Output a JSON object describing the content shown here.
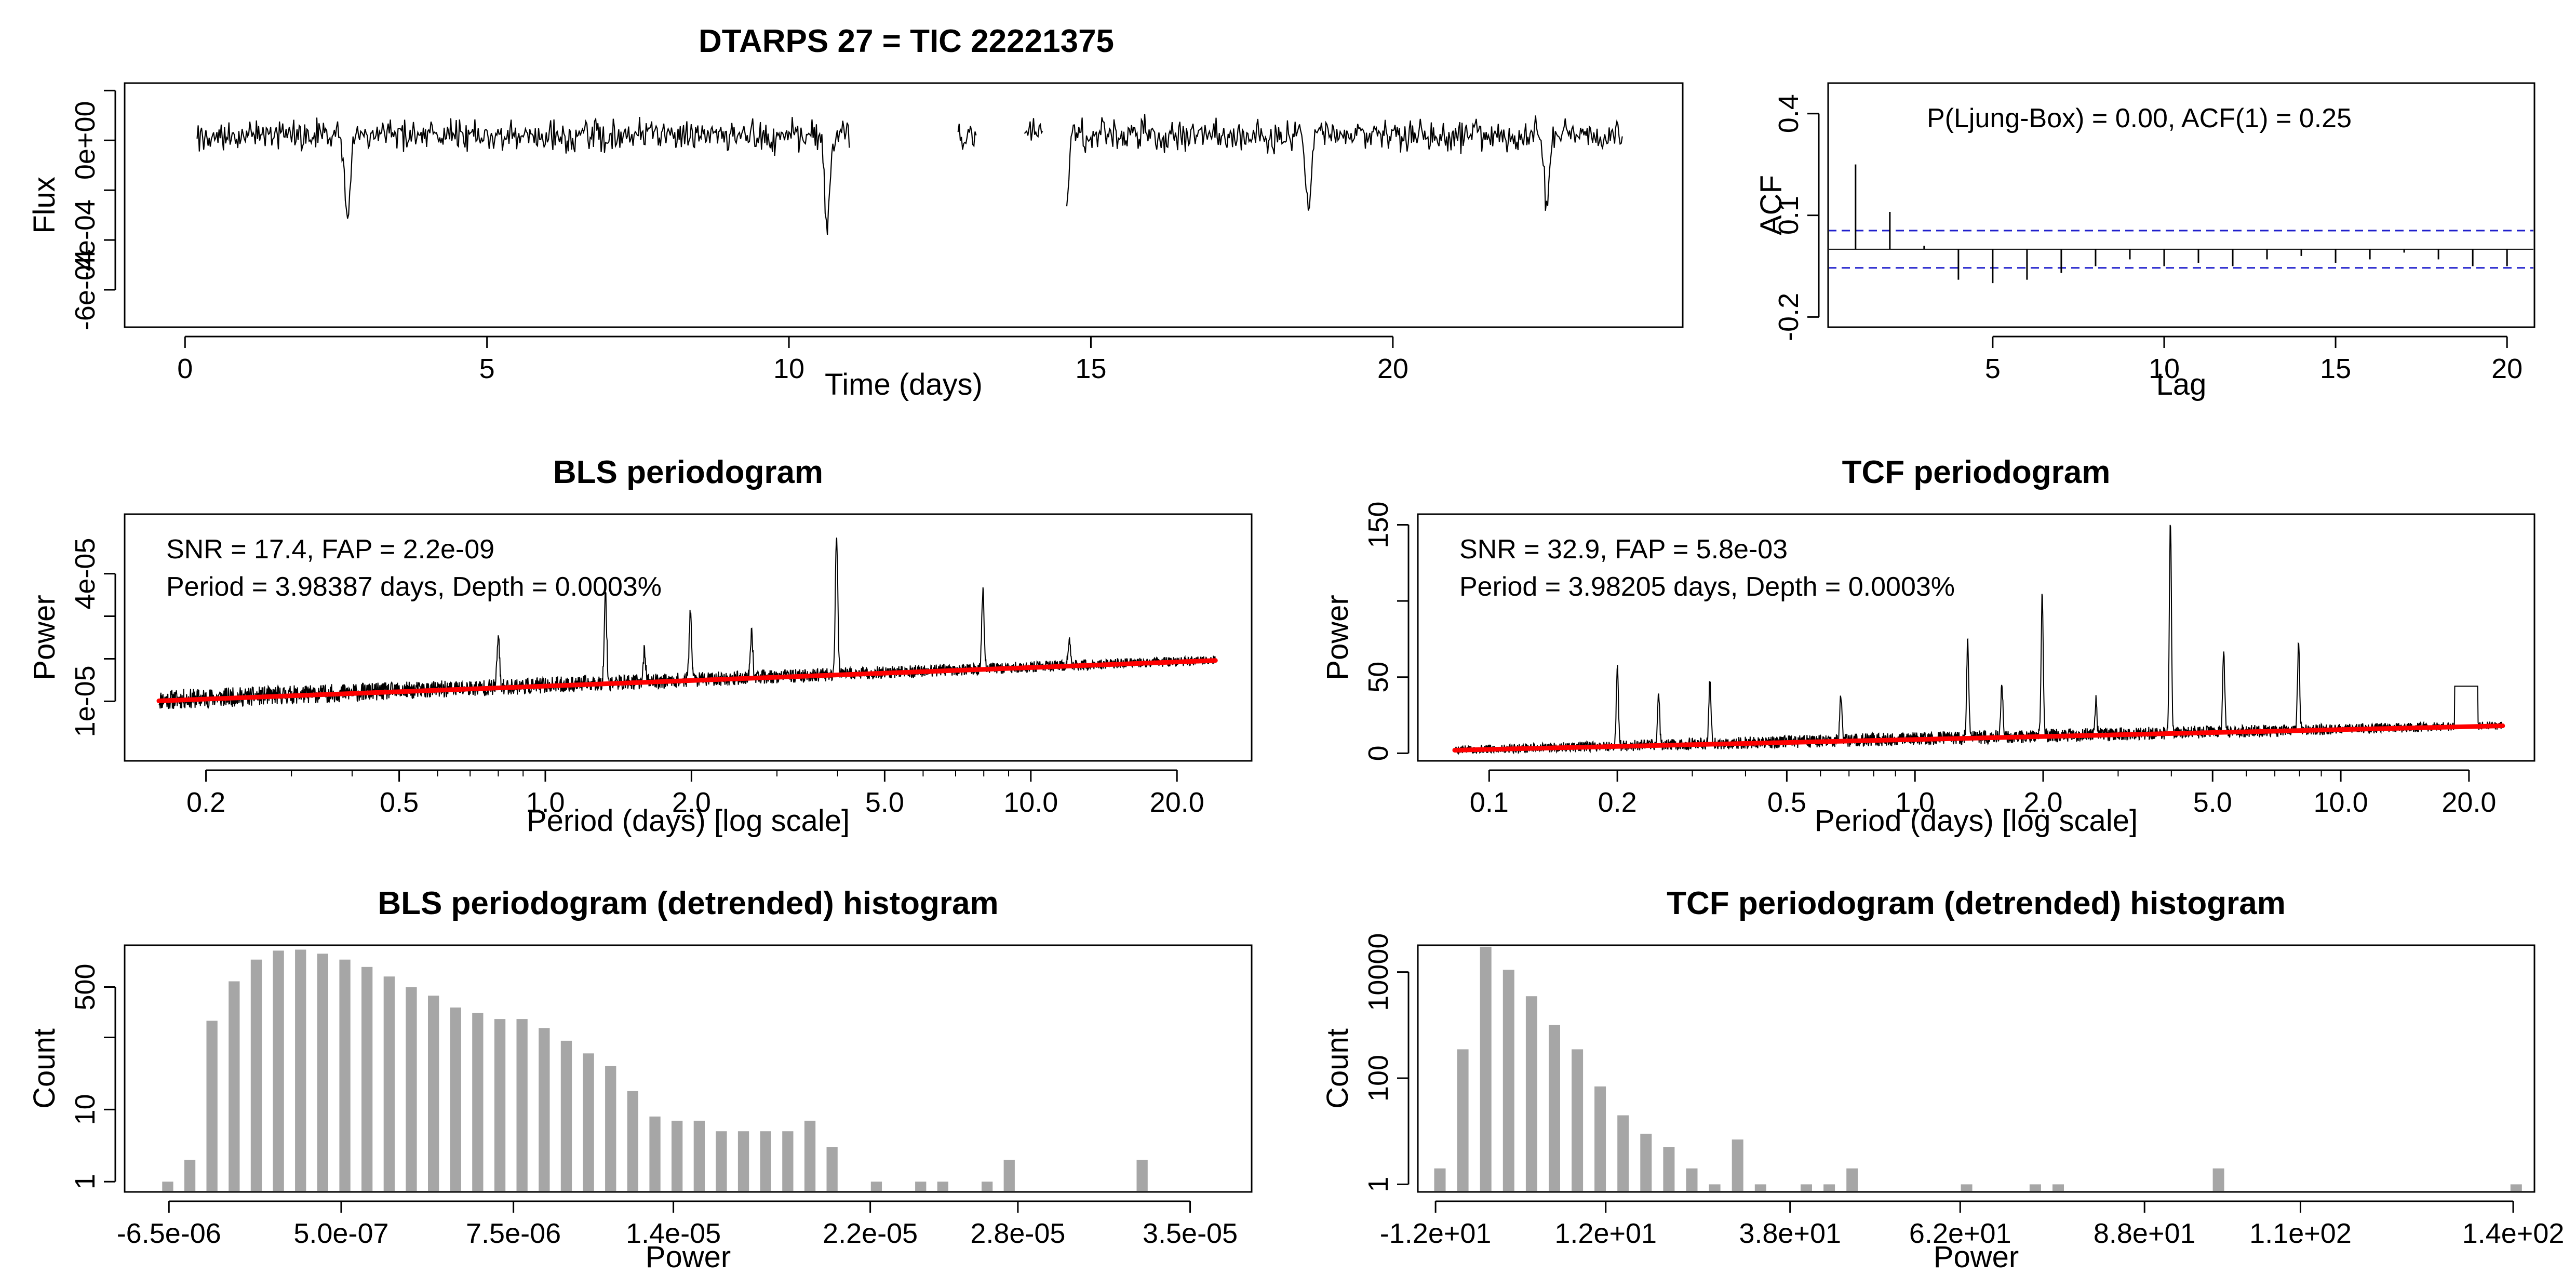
{
  "main_title": "DTARPS 27 = TIC 22221375",
  "chart_data": [
    {
      "id": "lightcurve",
      "type": "line",
      "title": "",
      "xlabel": "Time (days)",
      "ylabel": "Flux",
      "xlim": [
        -1.0,
        24.8
      ],
      "ylim": [
        -0.00075,
        0.00023
      ],
      "x_ticks": [
        0,
        5,
        10,
        15,
        20
      ],
      "x_tick_labels": [
        "0",
        "5",
        "10",
        "15",
        "20"
      ],
      "y_ticks": [
        -0.0006,
        -0.0004,
        0.0,
        0.0002
      ],
      "y_tick_labels": [
        "-6e-04",
        "-4e-04",
        "0e+00",
        ""
      ],
      "y_minor_ticks": [
        -0.0002
      ],
      "segments": [
        [
          0.2,
          11.0
        ],
        [
          12.8,
          13.1
        ],
        [
          13.9,
          14.2
        ],
        [
          14.6,
          23.8
        ]
      ],
      "noise_level": 6e-05,
      "baseline": 2e-05,
      "dips": [
        {
          "time": 2.69,
          "depth": 0.00033
        },
        {
          "time": 10.63,
          "depth": 0.00036
        },
        {
          "time": 14.6,
          "depth": 0.00024
        },
        {
          "time": 18.6,
          "depth": 0.00034
        },
        {
          "time": 22.55,
          "depth": 0.0003
        }
      ],
      "color": "#000000"
    },
    {
      "id": "acf",
      "type": "bar",
      "title": "",
      "annotation": "P(Ljung-Box) = 0.00, ACF(1) = 0.25",
      "xlabel": "Lag",
      "ylabel": "ACF",
      "xlim": [
        0.2,
        20.8
      ],
      "ylim": [
        -0.23,
        0.49
      ],
      "x_ticks": [
        5,
        10,
        15,
        20
      ],
      "x_tick_labels": [
        "5",
        "10",
        "15",
        "20"
      ],
      "y_ticks": [
        -0.2,
        0.1,
        0.4
      ],
      "y_tick_labels": [
        "-0.2",
        "0.1",
        "0.4"
      ],
      "lags": [
        1,
        2,
        3,
        4,
        5,
        6,
        7,
        8,
        9,
        10,
        11,
        12,
        13,
        14,
        15,
        16,
        17,
        18,
        19,
        20
      ],
      "values": [
        0.25,
        0.11,
        0.01,
        -0.09,
        -0.1,
        -0.09,
        -0.07,
        -0.05,
        -0.03,
        -0.05,
        -0.04,
        -0.05,
        -0.03,
        -0.02,
        -0.04,
        -0.03,
        -0.01,
        -0.03,
        -0.05,
        -0.05
      ],
      "confidence": 0.055,
      "ci_color": "#1f1fcc"
    },
    {
      "id": "bls",
      "type": "line",
      "title": "BLS periodogram",
      "annotations": [
        "SNR = 17.4, FAP = 2.2e-09",
        "Period = 3.98387 days, Depth = 0.0003%"
      ],
      "xlabel": "Period (days) [log scale]",
      "ylabel": "Power",
      "x_log": true,
      "xlim": [
        0.136,
        28.5
      ],
      "ylim": [
        -4e-06,
        5.4e-05
      ],
      "x_ticks": [
        0.2,
        0.5,
        1.0,
        2.0,
        5.0,
        10.0,
        20.0
      ],
      "x_tick_labels": [
        "0.2",
        "0.5",
        "1.0",
        "2.0",
        "5.0",
        "10.0",
        "20.0"
      ],
      "y_ticks": [
        1e-05,
        4e-05
      ],
      "y_tick_labels": [
        "1e-05",
        "4e-05"
      ],
      "y_minor_ticks": [
        2e-05,
        3e-05
      ],
      "x_range": [
        0.16,
        24.0
      ],
      "trend": {
        "start": 1.01e-05,
        "end": 1.96e-05
      },
      "noise_level": 4.8e-06,
      "peaks": [
        {
          "period": 1.33,
          "power": 3.55e-05
        },
        {
          "period": 1.99,
          "power": 3.1e-05
        },
        {
          "period": 2.66,
          "power": 2.6e-05
        },
        {
          "period": 3.98,
          "power": 4.96e-05
        },
        {
          "period": 7.97,
          "power": 3.55e-05
        },
        {
          "period": 0.8,
          "power": 2.5e-05
        },
        {
          "period": 1.6,
          "power": 2.15e-05
        },
        {
          "period": 12.0,
          "power": 2.4e-05
        }
      ],
      "color": "#000000",
      "trend_color": "#ff0000"
    },
    {
      "id": "tcf",
      "type": "line",
      "title": "TCF periodogram",
      "annotations": [
        "SNR = 32.9, FAP = 5.8e-03",
        "Period = 3.98205 days, Depth = 0.0003%"
      ],
      "xlabel": "Period (days) [log scale]",
      "ylabel": "Power",
      "x_log": true,
      "xlim": [
        0.068,
        28.5
      ],
      "ylim": [
        -5,
        157
      ],
      "x_ticks": [
        0.1,
        0.2,
        0.5,
        1.0,
        2.0,
        5.0,
        10.0,
        20.0
      ],
      "x_tick_labels": [
        "0.1",
        "0.2",
        "0.5",
        "1.0",
        "2.0",
        "5.0",
        "10.0",
        "20.0"
      ],
      "y_ticks": [
        0,
        50,
        150
      ],
      "y_tick_labels": [
        "0",
        "50",
        "150"
      ],
      "y_minor_ticks": [
        100
      ],
      "x_range": [
        0.083,
        24.0
      ],
      "trend": {
        "start": 2,
        "end": 18
      },
      "noise_level": 9,
      "peaks": [
        {
          "period": 3.98,
          "power": 151
        },
        {
          "period": 1.99,
          "power": 103
        },
        {
          "period": 1.33,
          "power": 75
        },
        {
          "period": 7.96,
          "power": 72
        },
        {
          "period": 5.31,
          "power": 65
        },
        {
          "period": 0.2,
          "power": 55
        },
        {
          "period": 0.33,
          "power": 48
        },
        {
          "period": 1.6,
          "power": 44
        },
        {
          "period": 0.25,
          "power": 38
        },
        {
          "period": 0.67,
          "power": 38
        },
        {
          "period": 2.66,
          "power": 34
        }
      ],
      "plateau": {
        "x_from": 18.5,
        "x_to": 21.0,
        "power": 44
      },
      "color": "#000000",
      "trend_color": "#ff0000"
    },
    {
      "id": "bls_hist",
      "type": "bar",
      "title": "BLS periodogram (detrended) histogram",
      "xlabel": "Power",
      "ylabel": "Count",
      "y_log": true,
      "xlim": [
        -8.3e-06,
        3.75e-05
      ],
      "ylim": [
        0.72,
        1900
      ],
      "x_ticks": [
        -6.5e-06,
        5e-07,
        7.5e-06,
        1.4e-05,
        2.2e-05,
        2.8e-05,
        3.5e-05
      ],
      "x_tick_labels": [
        "-6.5e-06",
        "5.0e-07",
        "7.5e-06",
        "1.4e-05",
        "2.2e-05",
        "2.8e-05",
        "3.5e-05"
      ],
      "y_ticks": [
        1,
        10,
        500
      ],
      "y_tick_labels": [
        "1",
        "10",
        "500"
      ],
      "y_minor_ticks": [
        100
      ],
      "bin_start": -7e-06,
      "bin_width": 9e-07,
      "bar_fill": 0.5,
      "counts": [
        1,
        2,
        170,
        600,
        1200,
        1600,
        1650,
        1450,
        1200,
        950,
        700,
        500,
        380,
        260,
        220,
        180,
        180,
        135,
        90,
        60,
        40,
        18,
        8,
        7,
        7,
        5,
        5,
        5,
        5,
        7,
        3,
        0,
        1,
        0,
        1,
        1,
        0,
        1,
        2,
        0,
        0,
        0,
        0,
        0,
        2
      ],
      "color": "#a6a6a6"
    },
    {
      "id": "tcf_hist",
      "type": "bar",
      "title": "TCF periodogram (detrended) histogram",
      "xlabel": "Power",
      "ylabel": "Count",
      "y_log": true,
      "xlim": [
        -14.5,
        143
      ],
      "ylim": [
        0.72,
        32000
      ],
      "x_ticks": [
        -12,
        12,
        38,
        62,
        88,
        110,
        140
      ],
      "x_tick_labels": [
        "-1.2e+01",
        "1.2e+01",
        "3.8e+01",
        "6.2e+01",
        "8.8e+01",
        "1.1e+02",
        "1.4e+02"
      ],
      "y_ticks": [
        1,
        100,
        10000
      ],
      "y_tick_labels": [
        "1",
        "100",
        "10000"
      ],
      "bin_start": -13.0,
      "bin_width": 3.23,
      "bar_fill": 0.5,
      "counts": [
        2,
        350,
        30000,
        11000,
        3500,
        1000,
        350,
        70,
        20,
        9,
        5,
        2,
        1,
        7,
        1,
        0,
        1,
        1,
        2,
        0,
        0,
        0,
        0,
        1,
        0,
        0,
        1,
        1,
        0,
        0,
        0,
        0,
        0,
        0,
        2,
        0,
        0,
        0,
        0,
        0,
        0,
        0,
        0,
        0,
        0,
        0,
        0,
        1
      ],
      "color": "#a6a6a6"
    }
  ]
}
